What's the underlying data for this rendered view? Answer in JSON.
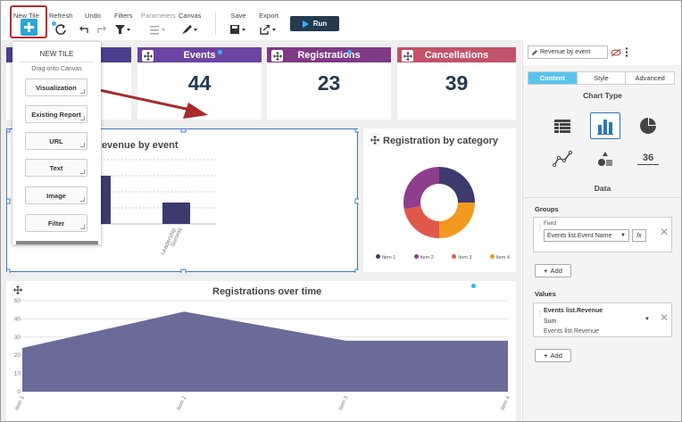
{
  "toolbar": {
    "new_tile": "New Tile",
    "refresh": "Refresh",
    "undo": "Undo",
    "filters": "Filters",
    "parameters": "Parameters",
    "canvas": "Canvas",
    "save": "Save",
    "export": "Export",
    "run": "Run"
  },
  "kpis": [
    {
      "title": "Events",
      "value": "44",
      "color": "#6b44a4"
    },
    {
      "title": "Registrations",
      "value": "23",
      "color": "#7f3a86"
    },
    {
      "title": "Cancellations",
      "value": "39",
      "color": "#c25269"
    }
  ],
  "popup": {
    "title": "NEW TILE",
    "subtitle": "Drag onto Canvas",
    "items": [
      "Visualization",
      "Existing Report",
      "URL",
      "Text",
      "Image",
      "Filter"
    ]
  },
  "bar_tile": {
    "title": "Revenue by event",
    "x_labels_partial": [
      "Leadership",
      "Summit"
    ]
  },
  "donut_tile": {
    "title": "Registration by category",
    "legend": [
      "Item 1",
      "Item 2",
      "Item 3",
      "Item 4"
    ]
  },
  "area_tile": {
    "title": "Registrations over time"
  },
  "panel": {
    "tile_name": "Revenue by event",
    "tabs": [
      "Content",
      "Style",
      "Advanced"
    ],
    "chart_type_title": "Chart Type",
    "kpi_icon_text": "36",
    "data_title": "Data",
    "groups_label": "Groups",
    "field_label": "Field",
    "group_field": "Events list.Event Name",
    "fx": "fx",
    "add": "Add",
    "values_label": "Values",
    "value_title": "Events list.Revenue",
    "value_agg": "Sum",
    "value_source": "Events list.Revenue"
  },
  "chart_data": [
    {
      "type": "bar",
      "title": "Revenue by event",
      "categories": [
        "",
        "Leadership Summit"
      ],
      "values": [
        null,
        null
      ]
    },
    {
      "type": "pie",
      "title": "Registration by category",
      "categories": [
        "Item 1",
        "Item 2",
        "Item 3",
        "Item 4"
      ],
      "values": [
        25,
        25,
        22,
        28
      ],
      "colors": [
        "#3d3a6e",
        "#f29a1f",
        "#e0584a",
        "#8e3e8c"
      ]
    },
    {
      "type": "area",
      "title": "Registrations over time",
      "x": [
        "Item 1",
        "Item 2",
        "Item 3",
        "Item 4"
      ],
      "values": [
        24,
        44,
        28,
        28
      ],
      "ylim": [
        0,
        50
      ],
      "yticks": [
        0,
        10,
        20,
        30,
        40,
        50
      ],
      "color": "#6b6b9a"
    }
  ]
}
